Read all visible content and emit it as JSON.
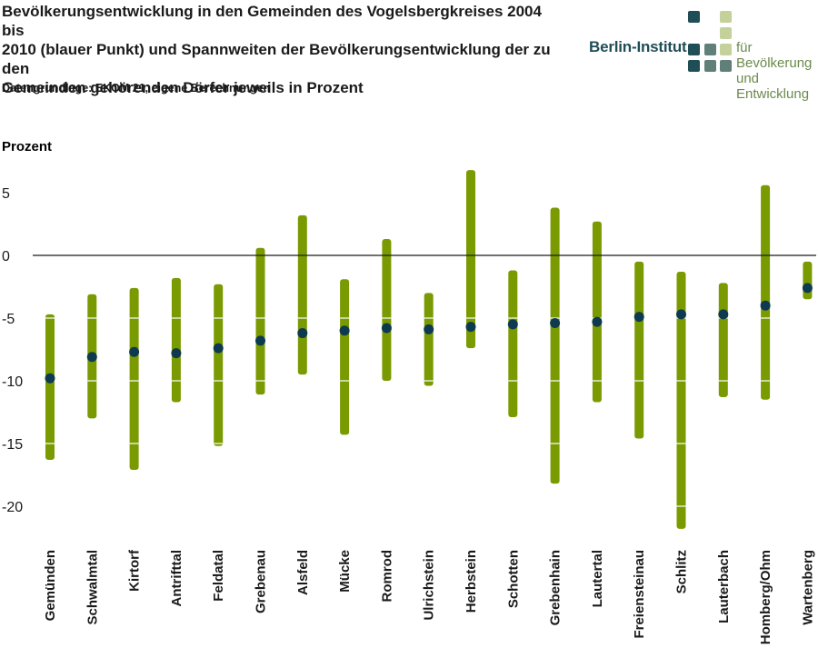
{
  "title_lines": [
    "Bevölkerungsentwicklung in den Gemeinden des Vogelsbergkreises 2004 bis",
    "2010 (blauer Punkt) und Spannweiten der Bevölkerungsentwicklung der zu den",
    "Gemeinden gehörenden Dörfer jeweils in Prozent"
  ],
  "source": "Datengrundlage: EKOM 21, eigene Berechnungen",
  "logo": {
    "name": "Berlin-Institut",
    "sub_line1": "für Bevölkerung",
    "sub_line2": "und Entwicklung"
  },
  "colors": {
    "range_bar": "#7a9a01",
    "point": "#0e3a4f",
    "zero_line": "#1a1a1a",
    "logo_dark": "#1f4e57",
    "logo_mid": "#5f7f78",
    "logo_light": "#c5d19a"
  },
  "chart_data": {
    "type": "range-dot",
    "ylabel": "Prozent",
    "ylim": [
      -22.5,
      7.5
    ],
    "yticks": [
      5,
      0,
      -5,
      -10,
      -15,
      -20
    ],
    "ytick_labels": [
      "5",
      "0",
      "-5",
      "-10",
      "-15",
      "-20"
    ],
    "gridlines_on_bars": [
      -5,
      -10,
      -15,
      -20
    ],
    "categories": [
      "Gemünden",
      "Schwalmtal",
      "Kirtorf",
      "Antrifttal",
      "Feldatal",
      "Grebenau",
      "Alsfeld",
      "Mücke",
      "Romrod",
      "Ulrichstein",
      "Herbstein",
      "Schotten",
      "Grebenhain",
      "Lautertal",
      "Freiensteinau",
      "Schlitz",
      "Lauterbach",
      "Homberg/Ohm",
      "Wartenberg"
    ],
    "series": [
      {
        "name": "blauer Punkt",
        "values": [
          -9.8,
          -8.1,
          -7.7,
          -7.8,
          -7.4,
          -6.8,
          -6.2,
          -6.0,
          -5.8,
          -5.9,
          -5.7,
          -5.5,
          -5.4,
          -5.3,
          -4.9,
          -4.7,
          -4.7,
          -4.0,
          -2.6
        ]
      }
    ],
    "ranges": [
      [
        -16.3,
        -4.7
      ],
      [
        -13.0,
        -3.1
      ],
      [
        -17.1,
        -2.6
      ],
      [
        -11.7,
        -1.8
      ],
      [
        -15.2,
        -2.3
      ],
      [
        -11.1,
        0.6
      ],
      [
        -9.5,
        3.2
      ],
      [
        -14.3,
        -1.9
      ],
      [
        -10.0,
        1.3
      ],
      [
        -10.4,
        -3.0
      ],
      [
        -7.4,
        6.8
      ],
      [
        -12.9,
        -1.2
      ],
      [
        -18.2,
        3.8
      ],
      [
        -11.7,
        2.7
      ],
      [
        -14.6,
        -0.5
      ],
      [
        -21.8,
        -1.3
      ],
      [
        -11.3,
        -2.2
      ],
      [
        -11.5,
        5.6
      ],
      [
        -3.5,
        -0.5
      ]
    ]
  }
}
